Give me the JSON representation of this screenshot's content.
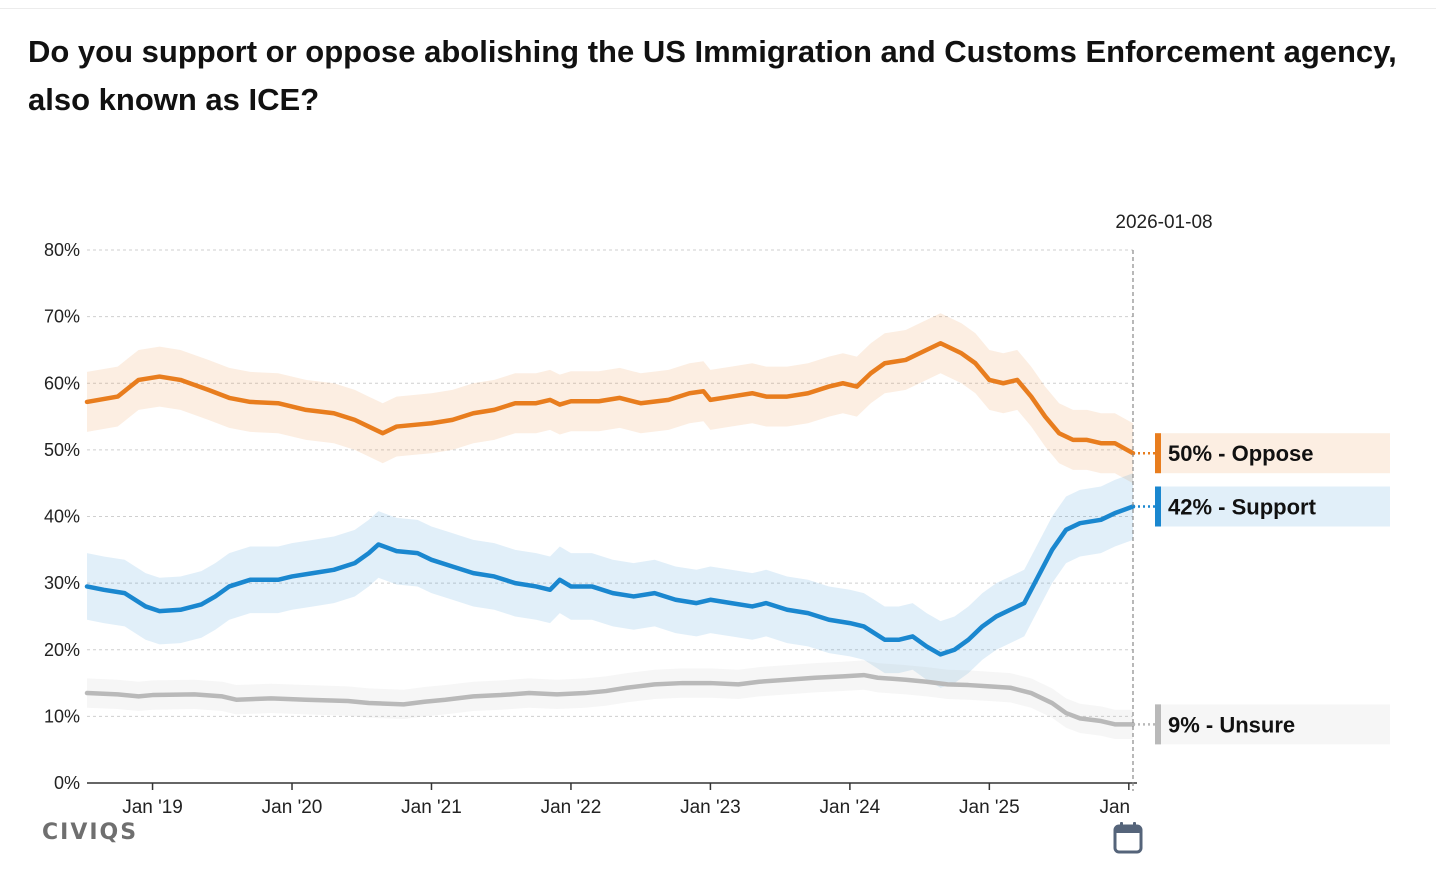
{
  "title": "Do you support or oppose abolishing the US Immigration and Customs Enforcement agency, also known as ICE?",
  "brand": "CIVIQS",
  "colors": {
    "oppose": "#e87d1e",
    "support": "#1a87cf",
    "unsure": "#b9b9b9"
  },
  "chart_data": {
    "type": "line",
    "title": "Do you support or oppose abolishing the US Immigration and Customs Enforcement agency, also known as ICE?",
    "xlabel": "",
    "ylabel": "",
    "x_range": [
      2018.53,
      2026.03
    ],
    "ylim": [
      0,
      80
    ],
    "y_ticks": [
      "0%",
      "10%",
      "20%",
      "30%",
      "40%",
      "50%",
      "60%",
      "70%",
      "80%"
    ],
    "x_ticks": [
      {
        "label": "Jan '19",
        "x": 2019.0
      },
      {
        "label": "Jan '20",
        "x": 2020.0
      },
      {
        "label": "Jan '21",
        "x": 2021.0
      },
      {
        "label": "Jan '22",
        "x": 2022.0
      },
      {
        "label": "Jan '23",
        "x": 2023.0
      },
      {
        "label": "Jan '24",
        "x": 2024.0
      },
      {
        "label": "Jan '25",
        "x": 2025.0
      },
      {
        "label": "Jan",
        "x": 2026.0
      }
    ],
    "grid": true,
    "current_date": "2026-01-08",
    "series": [
      {
        "name": "Oppose",
        "color_key": "oppose",
        "band_width": 4.5,
        "end_label": "50% - Oppose",
        "points": [
          [
            2018.53,
            57.2
          ],
          [
            2018.75,
            58.0
          ],
          [
            2018.9,
            60.5
          ],
          [
            2019.05,
            61.0
          ],
          [
            2019.2,
            60.5
          ],
          [
            2019.4,
            59.0
          ],
          [
            2019.55,
            57.8
          ],
          [
            2019.7,
            57.2
          ],
          [
            2019.9,
            57.0
          ],
          [
            2020.1,
            56.0
          ],
          [
            2020.3,
            55.5
          ],
          [
            2020.45,
            54.5
          ],
          [
            2020.55,
            53.5
          ],
          [
            2020.65,
            52.5
          ],
          [
            2020.75,
            53.5
          ],
          [
            2020.9,
            53.8
          ],
          [
            2021.0,
            54.0
          ],
          [
            2021.15,
            54.5
          ],
          [
            2021.3,
            55.5
          ],
          [
            2021.45,
            56.0
          ],
          [
            2021.6,
            57.0
          ],
          [
            2021.75,
            57.0
          ],
          [
            2021.85,
            57.5
          ],
          [
            2021.92,
            56.8
          ],
          [
            2022.0,
            57.3
          ],
          [
            2022.2,
            57.3
          ],
          [
            2022.35,
            57.8
          ],
          [
            2022.5,
            57.0
          ],
          [
            2022.7,
            57.5
          ],
          [
            2022.85,
            58.5
          ],
          [
            2022.95,
            58.8
          ],
          [
            2023.0,
            57.5
          ],
          [
            2023.15,
            58.0
          ],
          [
            2023.3,
            58.5
          ],
          [
            2023.4,
            58.0
          ],
          [
            2023.55,
            58.0
          ],
          [
            2023.7,
            58.5
          ],
          [
            2023.85,
            59.5
          ],
          [
            2023.95,
            60.0
          ],
          [
            2024.05,
            59.5
          ],
          [
            2024.15,
            61.5
          ],
          [
            2024.25,
            63.0
          ],
          [
            2024.4,
            63.5
          ],
          [
            2024.5,
            64.5
          ],
          [
            2024.65,
            66.0
          ],
          [
            2024.8,
            64.5
          ],
          [
            2024.9,
            63.0
          ],
          [
            2025.0,
            60.5
          ],
          [
            2025.1,
            60.0
          ],
          [
            2025.2,
            60.5
          ],
          [
            2025.3,
            58.0
          ],
          [
            2025.4,
            55.0
          ],
          [
            2025.5,
            52.5
          ],
          [
            2025.6,
            51.5
          ],
          [
            2025.7,
            51.5
          ],
          [
            2025.8,
            51.0
          ],
          [
            2025.9,
            51.0
          ],
          [
            2026.03,
            49.5
          ]
        ]
      },
      {
        "name": "Support",
        "color_key": "support",
        "band_width": 5.0,
        "end_label": "42% - Support",
        "points": [
          [
            2018.53,
            29.5
          ],
          [
            2018.65,
            29.0
          ],
          [
            2018.8,
            28.5
          ],
          [
            2018.95,
            26.5
          ],
          [
            2019.05,
            25.8
          ],
          [
            2019.2,
            26.0
          ],
          [
            2019.35,
            26.8
          ],
          [
            2019.45,
            28.0
          ],
          [
            2019.55,
            29.5
          ],
          [
            2019.7,
            30.5
          ],
          [
            2019.9,
            30.5
          ],
          [
            2020.0,
            31.0
          ],
          [
            2020.15,
            31.5
          ],
          [
            2020.3,
            32.0
          ],
          [
            2020.45,
            33.0
          ],
          [
            2020.55,
            34.5
          ],
          [
            2020.62,
            35.8
          ],
          [
            2020.75,
            34.8
          ],
          [
            2020.9,
            34.5
          ],
          [
            2021.0,
            33.5
          ],
          [
            2021.15,
            32.5
          ],
          [
            2021.3,
            31.5
          ],
          [
            2021.45,
            31.0
          ],
          [
            2021.6,
            30.0
          ],
          [
            2021.75,
            29.5
          ],
          [
            2021.85,
            29.0
          ],
          [
            2021.92,
            30.5
          ],
          [
            2022.0,
            29.5
          ],
          [
            2022.15,
            29.5
          ],
          [
            2022.3,
            28.5
          ],
          [
            2022.45,
            28.0
          ],
          [
            2022.6,
            28.5
          ],
          [
            2022.75,
            27.5
          ],
          [
            2022.9,
            27.0
          ],
          [
            2023.0,
            27.5
          ],
          [
            2023.15,
            27.0
          ],
          [
            2023.3,
            26.5
          ],
          [
            2023.4,
            27.0
          ],
          [
            2023.55,
            26.0
          ],
          [
            2023.7,
            25.5
          ],
          [
            2023.85,
            24.5
          ],
          [
            2024.0,
            24.0
          ],
          [
            2024.1,
            23.5
          ],
          [
            2024.25,
            21.5
          ],
          [
            2024.35,
            21.5
          ],
          [
            2024.45,
            22.0
          ],
          [
            2024.55,
            20.5
          ],
          [
            2024.65,
            19.3
          ],
          [
            2024.75,
            20.0
          ],
          [
            2024.85,
            21.5
          ],
          [
            2024.95,
            23.5
          ],
          [
            2025.05,
            25.0
          ],
          [
            2025.15,
            26.0
          ],
          [
            2025.25,
            27.0
          ],
          [
            2025.35,
            31.0
          ],
          [
            2025.45,
            35.0
          ],
          [
            2025.55,
            38.0
          ],
          [
            2025.65,
            39.0
          ],
          [
            2025.8,
            39.5
          ],
          [
            2025.9,
            40.5
          ],
          [
            2026.03,
            41.5
          ]
        ]
      },
      {
        "name": "Unsure",
        "color_key": "unsure",
        "band_width": 2.2,
        "end_label": "9% - Unsure",
        "points": [
          [
            2018.53,
            13.5
          ],
          [
            2018.75,
            13.3
          ],
          [
            2018.9,
            13.0
          ],
          [
            2019.0,
            13.2
          ],
          [
            2019.3,
            13.3
          ],
          [
            2019.5,
            13.0
          ],
          [
            2019.6,
            12.5
          ],
          [
            2019.85,
            12.7
          ],
          [
            2020.1,
            12.5
          ],
          [
            2020.4,
            12.3
          ],
          [
            2020.55,
            12.0
          ],
          [
            2020.8,
            11.8
          ],
          [
            2020.95,
            12.2
          ],
          [
            2021.1,
            12.5
          ],
          [
            2021.3,
            13.0
          ],
          [
            2021.5,
            13.2
          ],
          [
            2021.7,
            13.5
          ],
          [
            2021.9,
            13.3
          ],
          [
            2022.1,
            13.5
          ],
          [
            2022.25,
            13.8
          ],
          [
            2022.4,
            14.3
          ],
          [
            2022.6,
            14.8
          ],
          [
            2022.8,
            15.0
          ],
          [
            2023.0,
            15.0
          ],
          [
            2023.2,
            14.8
          ],
          [
            2023.35,
            15.2
          ],
          [
            2023.55,
            15.5
          ],
          [
            2023.75,
            15.8
          ],
          [
            2023.95,
            16.0
          ],
          [
            2024.1,
            16.2
          ],
          [
            2024.2,
            15.8
          ],
          [
            2024.4,
            15.5
          ],
          [
            2024.55,
            15.2
          ],
          [
            2024.7,
            14.8
          ],
          [
            2024.85,
            14.7
          ],
          [
            2025.0,
            14.5
          ],
          [
            2025.15,
            14.3
          ],
          [
            2025.3,
            13.5
          ],
          [
            2025.45,
            12.0
          ],
          [
            2025.55,
            10.5
          ],
          [
            2025.65,
            9.7
          ],
          [
            2025.8,
            9.3
          ],
          [
            2025.9,
            8.8
          ],
          [
            2026.03,
            8.8
          ]
        ]
      }
    ]
  }
}
